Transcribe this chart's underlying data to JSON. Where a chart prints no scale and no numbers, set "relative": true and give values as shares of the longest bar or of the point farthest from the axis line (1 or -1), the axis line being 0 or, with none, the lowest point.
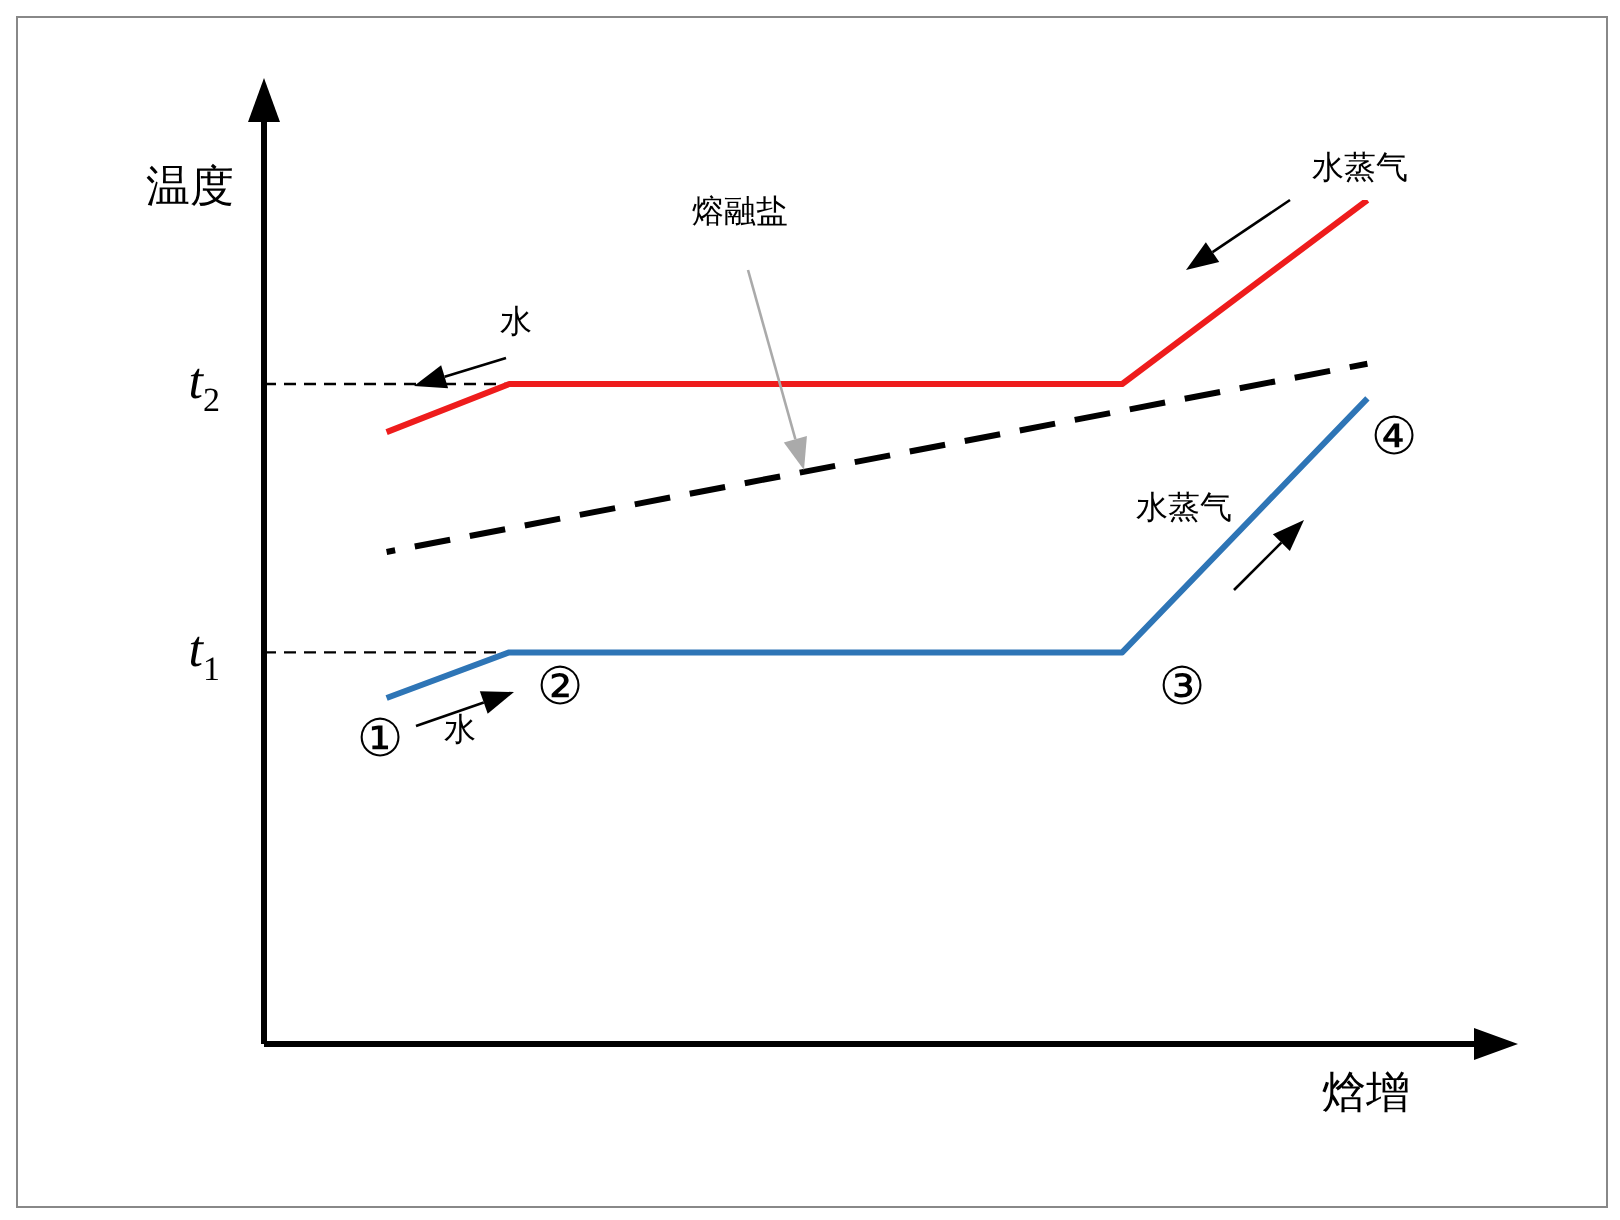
{
  "chart_data": {
    "type": "line",
    "relative": true,
    "xlabel": "焓增",
    "ylabel": "温度",
    "marker": "none",
    "categories": [
      null,
      null,
      null,
      null,
      null,
      null,
      null,
      null,
      null,
      null,
      null
    ],
    "series": [
      {
        "color": "#ee1c1c",
        "line_style": "solid",
        "values": [
          null,
          0.725,
          0.782,
          null,
          null,
          null,
          null,
          0.782,
          null,
          1.0,
          null
        ]
      },
      {
        "color": "#2e75b6",
        "line_style": "solid",
        "values": [
          null,
          0.41,
          0.464,
          null,
          null,
          null,
          null,
          0.464,
          null,
          0.765,
          null
        ]
      },
      {
        "color": "#000000",
        "line_style": "dashed",
        "values": [
          null,
          0.583,
          null,
          null,
          null,
          null,
          null,
          null,
          null,
          0.806,
          null
        ]
      }
    ],
    "ref_lines": [
      {
        "axis": "y",
        "value": 0.782,
        "label": "t$_{2}$",
        "line_style": "dashed",
        "color": "#000000"
      },
      {
        "axis": "y",
        "value": 0.464,
        "label": "t$_{1}$",
        "line_style": "dashed",
        "color": "#000000"
      }
    ],
    "annotations": [
      "熔融盐",
      "①",
      "②",
      "③",
      "④",
      "水",
      "水蒸气",
      "水",
      "水蒸气"
    ]
  }
}
